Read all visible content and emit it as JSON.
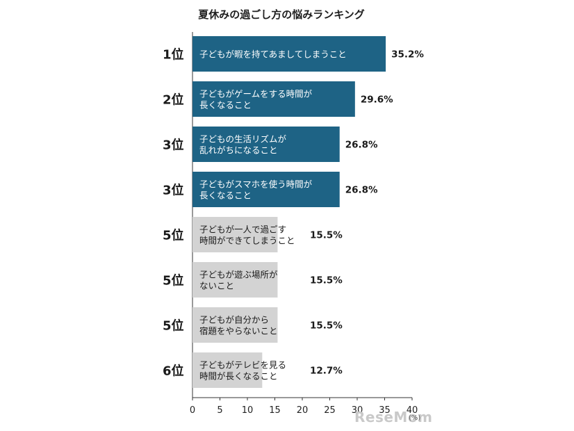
{
  "chart_data": {
    "type": "bar",
    "orientation": "horizontal",
    "title": "夏休みの過ごし方の悩みランキング",
    "ranks": [
      "1位",
      "2位",
      "3位",
      "3位",
      "5位",
      "5位",
      "5位",
      "6位"
    ],
    "categories": [
      [
        "子どもが暇を持てあましてしまうこと"
      ],
      [
        "子どもがゲームをする時間が",
        "長くなること"
      ],
      [
        "子どもの生活リズムが",
        "乱れがちになること"
      ],
      [
        "子どもがスマホを使う時間が",
        "長くなること"
      ],
      [
        "子どもが一人で過ごす",
        "時間ができてしまうこと"
      ],
      [
        "子どもが遊ぶ場所が",
        "ないこと"
      ],
      [
        "子どもが自分から",
        "宿題をやらないこと"
      ],
      [
        "子どもがテレビを見る",
        "時間が長くなること"
      ]
    ],
    "values": [
      35.2,
      29.6,
      26.8,
      26.8,
      15.5,
      15.5,
      15.5,
      12.7
    ],
    "value_labels": [
      "35.2%",
      "29.6%",
      "26.8%",
      "26.8%",
      "15.5%",
      "15.5%",
      "15.5%",
      "12.7%"
    ],
    "xlim": [
      0,
      40
    ],
    "xticks": [
      0,
      5,
      10,
      15,
      20,
      25,
      30,
      35,
      40
    ],
    "unit": "(%)",
    "colors": {
      "highlight": "#1e6385",
      "other": "#d3d3d3",
      "highlight_text": "#ffffff",
      "other_text": "#1a1a1a"
    },
    "highlight_count": 4
  },
  "watermark": "ReseMom"
}
